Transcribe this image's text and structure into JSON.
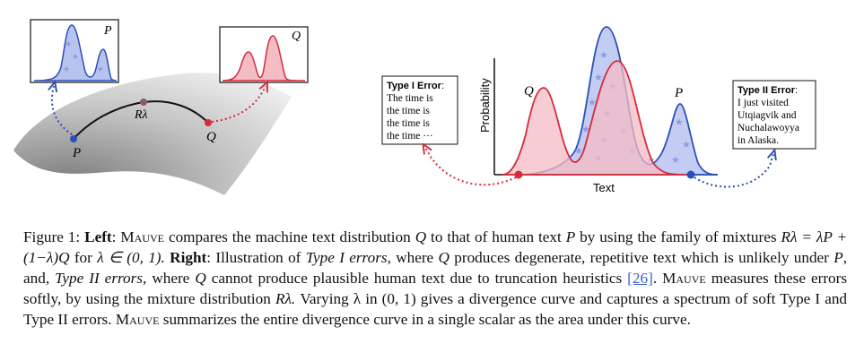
{
  "figure": {
    "left": {
      "p_label": "P",
      "q_label": "Q",
      "r_label": "Rλ",
      "inset_p_label": "P",
      "inset_q_label": "Q"
    },
    "right": {
      "ylabel": "Probability",
      "xlabel": "Text",
      "q_curve_label": "Q",
      "p_curve_label": "P",
      "type1": {
        "title": "Type I Error",
        "title_suffix": ":",
        "lines": [
          "The time is",
          "the time is",
          "the time is",
          "the time ···"
        ]
      },
      "type2": {
        "title": "Type II Error",
        "title_suffix": ":",
        "lines": [
          "I just visited",
          "Utqiagvik and",
          "Nuchalawoyya",
          "in Alaska."
        ]
      }
    },
    "colors": {
      "blue": "#2b4fb8",
      "red": "#d62b3c",
      "blue_fill": "#b9c3f0",
      "red_fill": "#f4bcc4"
    }
  },
  "caption": {
    "fig_label": "Figure 1:",
    "left_label": "Left",
    "mauve": "Mauve",
    "s1": "compares the machine text distribution",
    "q": "Q",
    "s2": "to that of human text",
    "p": "P",
    "s3": "by using the family of mixtures",
    "mix_formula": "Rλ = λP + (1−λ)Q",
    "s4": "for",
    "lambda_range": "λ ∈ (0, 1).",
    "right_label": "Right",
    "s5": "Illustration of",
    "type1": "Type I errors",
    "s6": ", where",
    "q2": "Q",
    "s7": "produces degenerate, repetitive text which is unlikely under",
    "p2": "P",
    "s8": ", and,",
    "type2": "Type II errors",
    "s9": ", where",
    "q3": "Q",
    "s10": "cannot produce plausible human text due to truncation heuristics",
    "ref": "[26]",
    "s11": ".",
    "mauve2": "Mauve",
    "s12": "measures these errors softly, by using the mixture distribution",
    "r": "Rλ.",
    "s13": "Varying λ in (0, 1) gives a divergence curve and captures a spectrum of soft Type I and Type II errors.",
    "mauve3": "Mauve",
    "s14": "summarizes the entire divergence curve in a single scalar as the area under this curve."
  }
}
